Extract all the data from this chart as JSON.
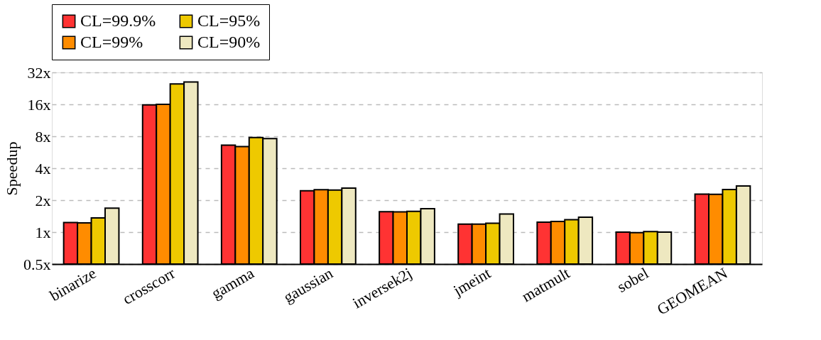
{
  "chart_data": {
    "type": "bar",
    "ylabel": "Speedup",
    "log": "y",
    "categories": [
      "binarize",
      "crosscorr",
      "gamma",
      "gaussian",
      "inversek2j",
      "jmeint",
      "matmult",
      "sobel",
      "GEOMEAN"
    ],
    "series": [
      {
        "name": "CL=99.9%",
        "color": "#ff3333",
        "values": [
          1.23,
          15.8,
          6.6,
          2.45,
          1.56,
          1.19,
          1.24,
          1.0,
          2.28
        ]
      },
      {
        "name": "CL=99%",
        "color": "#ff8c00",
        "values": [
          1.22,
          16,
          6.4,
          2.51,
          1.55,
          1.19,
          1.26,
          0.99,
          2.27
        ]
      },
      {
        "name": "CL=95%",
        "color": "#eec900",
        "values": [
          1.36,
          24.9,
          7.8,
          2.49,
          1.57,
          1.21,
          1.31,
          1.01,
          2.52
        ]
      },
      {
        "name": "CL=90%",
        "color": "#eee8c0",
        "values": [
          1.68,
          26,
          7.6,
          2.6,
          1.66,
          1.48,
          1.38,
          1.0,
          2.72
        ]
      }
    ],
    "ylim": [
      0.5,
      32
    ],
    "yticks": [
      {
        "value": 0.5,
        "label": "0.5x"
      },
      {
        "value": 1,
        "label": "1x"
      },
      {
        "value": 2,
        "label": "2x"
      },
      {
        "value": 4,
        "label": "4x"
      },
      {
        "value": 8,
        "label": "8x"
      },
      {
        "value": 16,
        "label": "16x"
      },
      {
        "value": 32,
        "label": "32x"
      }
    ],
    "grid": "y",
    "legend": "top"
  }
}
